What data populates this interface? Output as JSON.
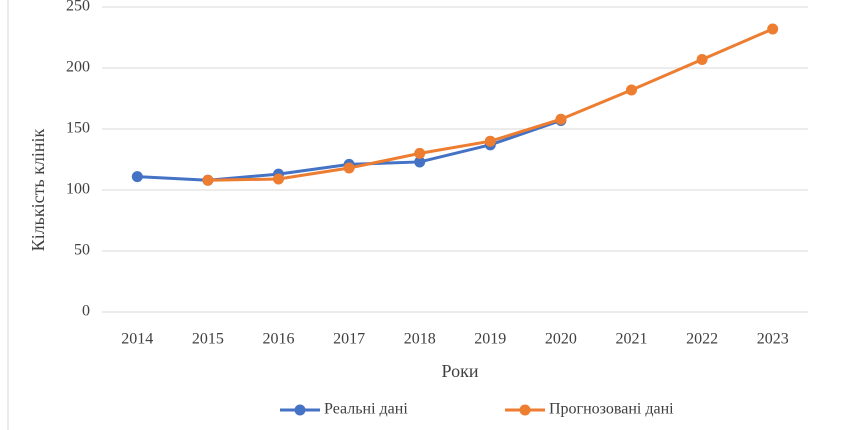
{
  "chart_data": {
    "type": "line",
    "y_label": "Кількість клінік",
    "x_label": "Роки",
    "categories": [
      "2014",
      "2015",
      "2016",
      "2017",
      "2018",
      "2019",
      "2020",
      "2021",
      "2022",
      "2023"
    ],
    "series": [
      {
        "name": "Реальні дані",
        "color": "#4472c4",
        "values": [
          111,
          108,
          113,
          121,
          123,
          137,
          157,
          null,
          null,
          null
        ]
      },
      {
        "name": "Прогнозовані дані",
        "color": "#ed7d31",
        "values": [
          null,
          108,
          109,
          118,
          130,
          140,
          158,
          182,
          207,
          232
        ]
      }
    ],
    "ylim": [
      0,
      250
    ],
    "yticks": [
      0,
      50,
      100,
      150,
      200,
      250
    ],
    "grid": true,
    "legend": "bottom"
  }
}
